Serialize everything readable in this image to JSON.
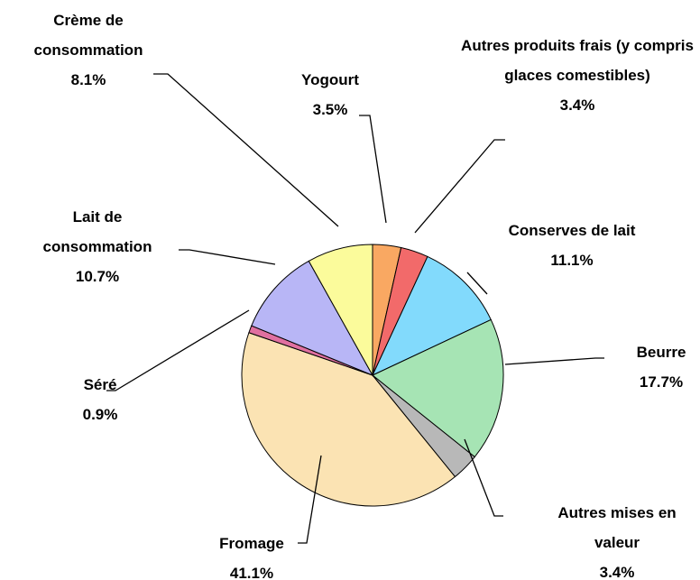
{
  "chart_data": {
    "type": "pie",
    "categories": [
      "Yogourt",
      "Autres produits frais (y compris glaces comestibles)",
      "Conserves de lait",
      "Beurre",
      "Autres mises en valeur",
      "Fromage",
      "Séré",
      "Lait de consommation",
      "Crème de consommation"
    ],
    "values": [
      3.5,
      3.4,
      11.1,
      17.7,
      3.4,
      41.1,
      0.9,
      10.7,
      8.1
    ],
    "value_labels": [
      "3.5%",
      "3.4%",
      "11.1%",
      "17.7%",
      "3.4%",
      "41.1%",
      "0.9%",
      "10.7%",
      "8.1%"
    ],
    "colors": [
      "#f9a862",
      "#f26a6a",
      "#82dafc",
      "#a6e4b4",
      "#b8b8b8",
      "#fbe3b3",
      "#e070a0",
      "#b8b6f6",
      "#fbfb9b"
    ]
  }
}
